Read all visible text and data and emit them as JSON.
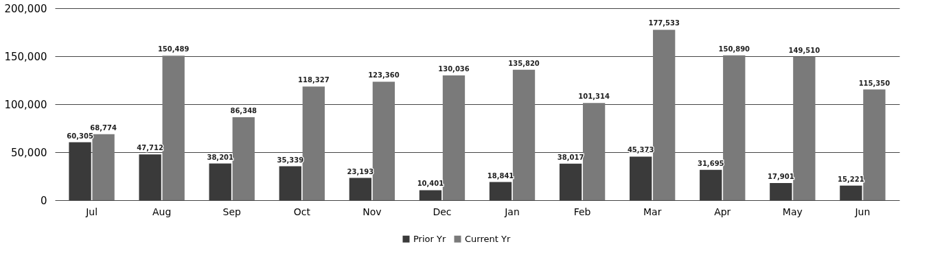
{
  "chart_data": {
    "type": "bar",
    "categories": [
      "Jul",
      "Aug",
      "Sep",
      "Oct",
      "Nov",
      "Dec",
      "Jan",
      "Feb",
      "Mar",
      "Apr",
      "May",
      "Jun"
    ],
    "series": [
      {
        "name": "Prior Yr",
        "color": "#3a3a3a",
        "values": [
          60305,
          47712,
          38201,
          35339,
          23193,
          10401,
          18841,
          38017,
          45373,
          31695,
          17901,
          15221
        ],
        "value_labels": [
          "60,305",
          "47,712",
          "38,201",
          "35,339",
          "23,193",
          "10,401",
          "18,841",
          "38,017",
          "45,373",
          "31,695",
          "17,901",
          "15,221"
        ]
      },
      {
        "name": "Current Yr",
        "color": "#7a7a7a",
        "values": [
          68774,
          150489,
          86348,
          118327,
          123360,
          130036,
          135820,
          101314,
          177533,
          150890,
          149510,
          115350
        ],
        "value_labels": [
          "68,774",
          "150,489",
          "86,348",
          "118,327",
          "123,360",
          "130,036",
          "135,820",
          "101,314",
          "177,533",
          "150,890",
          "149,510",
          "115,350"
        ]
      }
    ],
    "ylim": [
      0,
      200000
    ],
    "yticks": [
      0,
      {
        "value": 50000,
        "label": "50,000"
      },
      {
        "value": 100000,
        "label": "100,000"
      },
      {
        "value": 150000,
        "label": "150,000"
      },
      {
        "value": 200000,
        "label": "200,000"
      }
    ],
    "grid": "y",
    "legend": "bottom"
  }
}
